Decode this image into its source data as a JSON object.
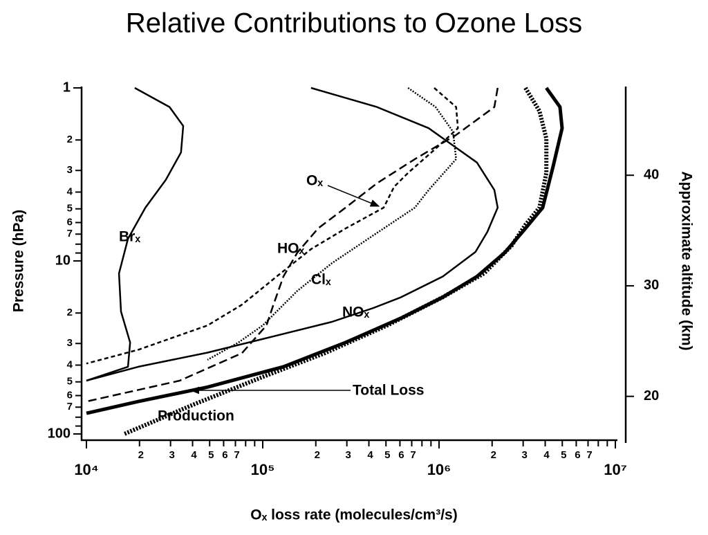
{
  "chart_data": {
    "type": "line",
    "title": "Relative Contributions to Ozone Loss",
    "x_label": "Oₓ loss rate (molecules/cm³/s)",
    "y_label": "Pressure (hPa)",
    "y2_label": "Approximate altitude (km)",
    "x_scale": "log",
    "y_scale": "log",
    "y_inverted": true,
    "xlim": [
      10000,
      10000000
    ],
    "ylim": [
      1,
      100
    ],
    "y2lim": [
      16.6,
      47.9
    ],
    "xticks": [
      {
        "value": 10000,
        "label": "10⁴"
      },
      {
        "value": 20000,
        "label": "2"
      },
      {
        "value": 30000,
        "label": "3"
      },
      {
        "value": 40000,
        "label": "4"
      },
      {
        "value": 50000,
        "label": "5"
      },
      {
        "value": 60000,
        "label": "6"
      },
      {
        "value": 70000,
        "label": "7"
      },
      {
        "value": 100000,
        "label": "10⁵"
      },
      {
        "value": 200000,
        "label": "2"
      },
      {
        "value": 300000,
        "label": "3"
      },
      {
        "value": 400000,
        "label": "4"
      },
      {
        "value": 500000,
        "label": "5"
      },
      {
        "value": 600000,
        "label": "6"
      },
      {
        "value": 700000,
        "label": "7"
      },
      {
        "value": 1000000,
        "label": "10⁶"
      },
      {
        "value": 2000000,
        "label": "2"
      },
      {
        "value": 3000000,
        "label": "3"
      },
      {
        "value": 4000000,
        "label": "4"
      },
      {
        "value": 5000000,
        "label": "5"
      },
      {
        "value": 6000000,
        "label": "6"
      },
      {
        "value": 7000000,
        "label": "7"
      },
      {
        "value": 10000000,
        "label": "10⁷"
      }
    ],
    "xminor_ticks": [
      80000,
      90000,
      800000,
      900000,
      8000000,
      9000000
    ],
    "yticks": [
      1,
      2,
      3,
      4,
      5,
      6,
      7,
      10,
      {
        "value": 20,
        "label": "2"
      },
      {
        "value": 30,
        "label": "3"
      },
      {
        "value": 40,
        "label": "4"
      },
      {
        "value": 50,
        "label": "5"
      },
      {
        "value": 60,
        "label": "6"
      },
      {
        "value": 70,
        "label": "7"
      },
      100
    ],
    "yminor_ticks": [
      8,
      9,
      80,
      90
    ],
    "y2ticks": [
      20,
      30,
      40
    ],
    "series": [
      {
        "name": "Brₓ",
        "color": "#000000",
        "linestyle": "solid",
        "weight": "normal",
        "x": [
          18800,
          29600,
          35400,
          34400,
          28200,
          21600,
          17200,
          15300,
          15700,
          17700,
          17200,
          10000
        ],
        "values": [
          1,
          1.29,
          1.66,
          2.36,
          3.4,
          4.92,
          7.45,
          11.8,
          19.6,
          29.6,
          40.9,
          49.2
        ]
      },
      {
        "name": "NOₓ",
        "color": "#000000",
        "linestyle": "solid",
        "weight": "normal",
        "x": [
          188000,
          444000,
          873000,
          1640000,
          2060000,
          2150000,
          1880000,
          1610000,
          1050000,
          609000,
          424000,
          247000,
          120000,
          48600,
          19700,
          10000
        ],
        "values": [
          1,
          1.29,
          1.71,
          2.7,
          3.89,
          4.92,
          6.79,
          8.87,
          12.3,
          16.2,
          18.7,
          22.5,
          27,
          33.9,
          40.9,
          49.2
        ]
      },
      {
        "name": "HOₓ",
        "color": "#000000",
        "linestyle": "dashed",
        "weight": "normal",
        "x": [
          2150000,
          2060000,
          1250000,
          729000,
          444000,
          295000,
          206000,
          157000,
          131000,
          115000,
          105000,
          76300,
          33800,
          10000
        ],
        "values": [
          1,
          1.29,
          1.87,
          2.58,
          3.56,
          4.92,
          6.49,
          8.95,
          12.3,
          17.9,
          23.6,
          34.1,
          49.2,
          64.9
        ]
      },
      {
        "name": "Oₓ",
        "color": "#000000",
        "linestyle": "short-dashed",
        "weight": "normal",
        "x": [
          939000,
          1250000,
          1280000,
          955000,
          667000,
          556000,
          485000,
          295000,
          188000,
          120000,
          76300,
          48600,
          19700,
          10000
        ],
        "values": [
          1,
          1.29,
          1.71,
          2.25,
          3.1,
          3.73,
          4.92,
          6.49,
          8.54,
          12.3,
          17.9,
          23.6,
          32.6,
          39.2
        ]
      },
      {
        "name": "Clₓ",
        "color": "#000000",
        "linestyle": "dotted",
        "weight": "normal",
        "x": [
          667000,
          955000,
          1200000,
          1250000,
          873000,
          729000,
          424000,
          247000,
          157000,
          100000,
          72900,
          48600
        ],
        "values": [
          1,
          1.29,
          1.79,
          2.58,
          3.89,
          4.92,
          7.11,
          10.3,
          14.9,
          23.6,
          29.6,
          37.3
        ]
      },
      {
        "name": "Total Loss",
        "color": "#000000",
        "linestyle": "solid",
        "weight": "thick",
        "x": [
          4060000,
          4850000,
          4990000,
          4440000,
          3870000,
          3090000,
          2360000,
          1640000,
          1050000,
          609000,
          295000,
          131000,
          48600,
          19700,
          10000
        ],
        "values": [
          1,
          1.29,
          1.71,
          2.83,
          4.92,
          6.49,
          8.95,
          12.3,
          16.2,
          21.4,
          29.6,
          40.9,
          53.6,
          64.9,
          75.9
        ]
      },
      {
        "name": "Production",
        "color": "#000000",
        "linestyle": "dotted",
        "weight": "thick",
        "x": [
          3090000,
          3710000,
          4060000,
          4060000,
          3710000,
          3090000,
          2580000,
          1800000,
          1050000,
          508000,
          225000,
          100000,
          40500,
          16400
        ],
        "values": [
          1,
          1.36,
          1.96,
          3.1,
          4.92,
          6.19,
          8.15,
          11.8,
          16.2,
          23.6,
          34.1,
          46.8,
          67.6,
          100
        ]
      }
    ]
  }
}
